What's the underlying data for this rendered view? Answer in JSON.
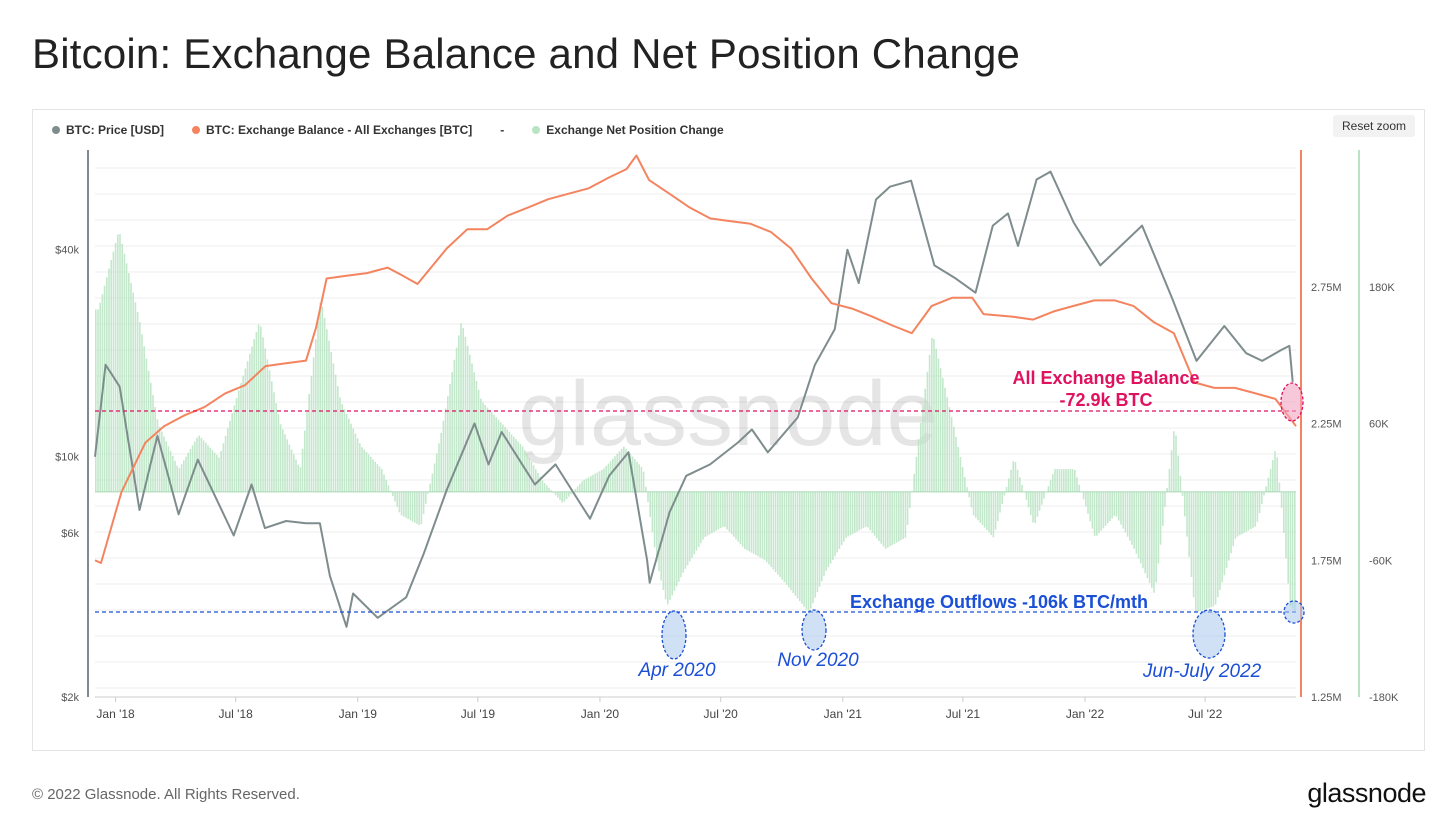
{
  "title": "Bitcoin: Exchange Balance and Net Position Change",
  "legend": {
    "items": [
      {
        "label": "BTC: Price [USD]",
        "color": "#7f8c8d"
      },
      {
        "label": "BTC: Exchange Balance - All Exchanges [BTC]",
        "color": "#f4845f"
      },
      {
        "label": "Exchange Net Position Change",
        "color": "#b9e4c3"
      }
    ],
    "separator": "-"
  },
  "reset_zoom": "Reset zoom",
  "watermark": "glassnode",
  "footer": {
    "copyright": "© 2022 Glassnode. All Rights Reserved.",
    "logo": "glassnode"
  },
  "chart_data": {
    "type": "line",
    "x_tick_labels": [
      "Jan '18",
      "Jul '18",
      "Jan '19",
      "Jul '19",
      "Jan '20",
      "Jul '20",
      "Jan '21",
      "Jul '21",
      "Jan '22",
      "Jul '22"
    ],
    "x_tick_dates": [
      "2018-01-01",
      "2018-07-01",
      "2019-01-01",
      "2019-07-01",
      "2020-01-01",
      "2020-07-01",
      "2021-01-01",
      "2021-07-01",
      "2022-01-01",
      "2022-07-01"
    ],
    "x_range": [
      "2017-12-01",
      "2022-11-15"
    ],
    "axes": {
      "price": {
        "scale": "log",
        "ticks": [
          2000,
          6000,
          10000,
          40000
        ],
        "tick_labels": [
          "$2k",
          "$6k",
          "$10k",
          "$40k"
        ],
        "range": [
          2000,
          78000
        ]
      },
      "balance": {
        "scale": "linear",
        "ticks": [
          1250000,
          1750000,
          2250000,
          2750000
        ],
        "tick_labels": [
          "1.25M",
          "1.75M",
          "2.25M",
          "2.75M"
        ],
        "range": [
          1250000,
          3250000
        ]
      },
      "netflow": {
        "scale": "linear",
        "ticks": [
          -180000,
          -60000,
          60000,
          180000
        ],
        "tick_labels": [
          "-180K",
          "-60K",
          "60K",
          "180K"
        ],
        "range": [
          -180000,
          300000
        ]
      }
    },
    "grid": true,
    "series": [
      {
        "name": "BTC: Price [USD]",
        "axis": "price",
        "color": "#7f8c8d",
        "points": [
          [
            "2017-12-01",
            10000
          ],
          [
            "2017-12-17",
            18500
          ],
          [
            "2018-01-07",
            16000
          ],
          [
            "2018-02-06",
            7000
          ],
          [
            "2018-03-05",
            11500
          ],
          [
            "2018-04-06",
            6800
          ],
          [
            "2018-05-05",
            9800
          ],
          [
            "2018-06-28",
            5900
          ],
          [
            "2018-07-25",
            8300
          ],
          [
            "2018-08-14",
            6200
          ],
          [
            "2018-09-15",
            6500
          ],
          [
            "2018-10-15",
            6400
          ],
          [
            "2018-11-05",
            6400
          ],
          [
            "2018-11-20",
            4500
          ],
          [
            "2018-12-15",
            3200
          ],
          [
            "2018-12-25",
            4000
          ],
          [
            "2019-01-31",
            3400
          ],
          [
            "2019-03-15",
            3900
          ],
          [
            "2019-04-10",
            5200
          ],
          [
            "2019-05-15",
            8000
          ],
          [
            "2019-06-26",
            12500
          ],
          [
            "2019-07-17",
            9500
          ],
          [
            "2019-08-06",
            11800
          ],
          [
            "2019-09-25",
            8300
          ],
          [
            "2019-10-26",
            9500
          ],
          [
            "2019-12-17",
            6600
          ],
          [
            "2020-01-15",
            8800
          ],
          [
            "2020-02-13",
            10300
          ],
          [
            "2020-03-12",
            5000
          ],
          [
            "2020-03-16",
            4300
          ],
          [
            "2020-04-15",
            6900
          ],
          [
            "2020-05-10",
            8800
          ],
          [
            "2020-06-15",
            9500
          ],
          [
            "2020-07-27",
            11000
          ],
          [
            "2020-08-17",
            12000
          ],
          [
            "2020-09-10",
            10300
          ],
          [
            "2020-10-25",
            13000
          ],
          [
            "2020-11-20",
            18500
          ],
          [
            "2020-12-20",
            23500
          ],
          [
            "2021-01-08",
            40000
          ],
          [
            "2021-01-25",
            32000
          ],
          [
            "2021-02-20",
            56000
          ],
          [
            "2021-03-13",
            61000
          ],
          [
            "2021-04-14",
            63500
          ],
          [
            "2021-05-19",
            36000
          ],
          [
            "2021-06-20",
            33000
          ],
          [
            "2021-07-20",
            30000
          ],
          [
            "2021-08-15",
            47000
          ],
          [
            "2021-09-07",
            51000
          ],
          [
            "2021-09-22",
            41000
          ],
          [
            "2021-10-20",
            64000
          ],
          [
            "2021-11-10",
            67500
          ],
          [
            "2021-12-15",
            48000
          ],
          [
            "2022-01-24",
            36000
          ],
          [
            "2022-03-28",
            47000
          ],
          [
            "2022-05-12",
            29000
          ],
          [
            "2022-06-18",
            19000
          ],
          [
            "2022-07-30",
            24000
          ],
          [
            "2022-09-01",
            20000
          ],
          [
            "2022-09-25",
            19000
          ],
          [
            "2022-10-25",
            20500
          ],
          [
            "2022-11-05",
            21000
          ],
          [
            "2022-11-10",
            16500
          ]
        ]
      },
      {
        "name": "BTC: Exchange Balance - All Exchanges [BTC]",
        "axis": "balance",
        "color": "#f4845f",
        "points": [
          [
            "2017-12-01",
            1750000
          ],
          [
            "2017-12-10",
            1740000
          ],
          [
            "2018-01-10",
            2000000
          ],
          [
            "2018-02-15",
            2180000
          ],
          [
            "2018-03-15",
            2240000
          ],
          [
            "2018-04-15",
            2280000
          ],
          [
            "2018-05-15",
            2310000
          ],
          [
            "2018-06-15",
            2360000
          ],
          [
            "2018-07-15",
            2390000
          ],
          [
            "2018-08-15",
            2460000
          ],
          [
            "2018-09-15",
            2470000
          ],
          [
            "2018-10-15",
            2480000
          ],
          [
            "2018-10-30",
            2600000
          ],
          [
            "2018-11-15",
            2780000
          ],
          [
            "2018-12-15",
            2790000
          ],
          [
            "2019-01-15",
            2800000
          ],
          [
            "2019-02-15",
            2820000
          ],
          [
            "2019-03-10",
            2790000
          ],
          [
            "2019-04-01",
            2760000
          ],
          [
            "2019-05-15",
            2890000
          ],
          [
            "2019-06-15",
            2960000
          ],
          [
            "2019-07-15",
            2960000
          ],
          [
            "2019-08-15",
            3010000
          ],
          [
            "2019-09-15",
            3040000
          ],
          [
            "2019-10-15",
            3070000
          ],
          [
            "2019-12-15",
            3110000
          ],
          [
            "2020-01-15",
            3150000
          ],
          [
            "2020-02-10",
            3180000
          ],
          [
            "2020-02-25",
            3230000
          ],
          [
            "2020-03-15",
            3140000
          ],
          [
            "2020-04-15",
            3090000
          ],
          [
            "2020-05-15",
            3040000
          ],
          [
            "2020-06-15",
            3000000
          ],
          [
            "2020-07-15",
            2990000
          ],
          [
            "2020-08-15",
            2980000
          ],
          [
            "2020-09-15",
            2950000
          ],
          [
            "2020-10-15",
            2890000
          ],
          [
            "2020-11-15",
            2780000
          ],
          [
            "2020-12-15",
            2690000
          ],
          [
            "2021-01-15",
            2670000
          ],
          [
            "2021-02-15",
            2640000
          ],
          [
            "2021-03-15",
            2610000
          ],
          [
            "2021-04-15",
            2580000
          ],
          [
            "2021-05-15",
            2680000
          ],
          [
            "2021-06-15",
            2710000
          ],
          [
            "2021-07-15",
            2710000
          ],
          [
            "2021-08-01",
            2650000
          ],
          [
            "2021-09-15",
            2640000
          ],
          [
            "2021-10-15",
            2630000
          ],
          [
            "2021-11-15",
            2660000
          ],
          [
            "2021-12-15",
            2680000
          ],
          [
            "2022-01-15",
            2700000
          ],
          [
            "2022-02-15",
            2700000
          ],
          [
            "2022-03-15",
            2680000
          ],
          [
            "2022-04-15",
            2620000
          ],
          [
            "2022-05-15",
            2580000
          ],
          [
            "2022-06-15",
            2400000
          ],
          [
            "2022-07-15",
            2380000
          ],
          [
            "2022-08-15",
            2380000
          ],
          [
            "2022-09-15",
            2360000
          ],
          [
            "2022-10-15",
            2340000
          ],
          [
            "2022-11-15",
            2240000
          ]
        ]
      },
      {
        "name": "Exchange Net Position Change",
        "axis": "netflow",
        "color": "#b9e4c3",
        "type": "column",
        "points": [
          [
            "2017-12-05",
            160000
          ],
          [
            "2018-01-05",
            230000
          ],
          [
            "2018-02-05",
            150000
          ],
          [
            "2018-03-05",
            60000
          ],
          [
            "2018-04-05",
            20000
          ],
          [
            "2018-05-05",
            50000
          ],
          [
            "2018-06-05",
            30000
          ],
          [
            "2018-07-05",
            90000
          ],
          [
            "2018-08-05",
            150000
          ],
          [
            "2018-09-05",
            60000
          ],
          [
            "2018-10-05",
            20000
          ],
          [
            "2018-11-05",
            170000
          ],
          [
            "2018-12-05",
            80000
          ],
          [
            "2019-01-05",
            40000
          ],
          [
            "2019-02-05",
            20000
          ],
          [
            "2019-03-05",
            -20000
          ],
          [
            "2019-04-05",
            -30000
          ],
          [
            "2019-05-05",
            50000
          ],
          [
            "2019-06-05",
            150000
          ],
          [
            "2019-07-05",
            80000
          ],
          [
            "2019-08-05",
            60000
          ],
          [
            "2019-09-05",
            40000
          ],
          [
            "2019-10-05",
            10000
          ],
          [
            "2019-11-05",
            -10000
          ],
          [
            "2019-12-05",
            10000
          ],
          [
            "2020-01-05",
            20000
          ],
          [
            "2020-02-05",
            40000
          ],
          [
            "2020-03-05",
            20000
          ],
          [
            "2020-03-25",
            -60000
          ],
          [
            "2020-04-10",
            -100000
          ],
          [
            "2020-05-05",
            -70000
          ],
          [
            "2020-06-05",
            -40000
          ],
          [
            "2020-07-05",
            -30000
          ],
          [
            "2020-08-05",
            -50000
          ],
          [
            "2020-09-05",
            -60000
          ],
          [
            "2020-10-05",
            -80000
          ],
          [
            "2020-11-10",
            -106000
          ],
          [
            "2020-12-05",
            -70000
          ],
          [
            "2021-01-05",
            -40000
          ],
          [
            "2021-02-05",
            -30000
          ],
          [
            "2021-03-05",
            -50000
          ],
          [
            "2021-04-05",
            -40000
          ],
          [
            "2021-05-15",
            140000
          ],
          [
            "2021-06-15",
            60000
          ],
          [
            "2021-07-15",
            -20000
          ],
          [
            "2021-08-15",
            -40000
          ],
          [
            "2021-09-15",
            30000
          ],
          [
            "2021-10-15",
            -30000
          ],
          [
            "2021-11-15",
            20000
          ],
          [
            "2021-12-15",
            20000
          ],
          [
            "2022-01-15",
            -40000
          ],
          [
            "2022-02-15",
            -20000
          ],
          [
            "2022-03-15",
            -50000
          ],
          [
            "2022-04-15",
            -90000
          ],
          [
            "2022-05-15",
            60000
          ],
          [
            "2022-06-15",
            -106000
          ],
          [
            "2022-07-15",
            -100000
          ],
          [
            "2022-08-15",
            -40000
          ],
          [
            "2022-09-15",
            -30000
          ],
          [
            "2022-10-15",
            40000
          ],
          [
            "2022-11-05",
            -100000
          ],
          [
            "2022-11-15",
            -106000
          ]
        ]
      }
    ],
    "annotations": [
      {
        "text": "All Exchange Balance",
        "color": "#e0115f"
      },
      {
        "text": "-72.9k BTC",
        "color": "#e0115f"
      },
      {
        "text": "Exchange Outflows -106k BTC/mth",
        "color": "#1a4fd6"
      },
      {
        "text": "Apr 2020",
        "color": "#1a4fd6"
      },
      {
        "text": "Nov 2020",
        "color": "#1a4fd6"
      },
      {
        "text": "Jun-July 2022",
        "color": "#1a4fd6"
      }
    ]
  }
}
